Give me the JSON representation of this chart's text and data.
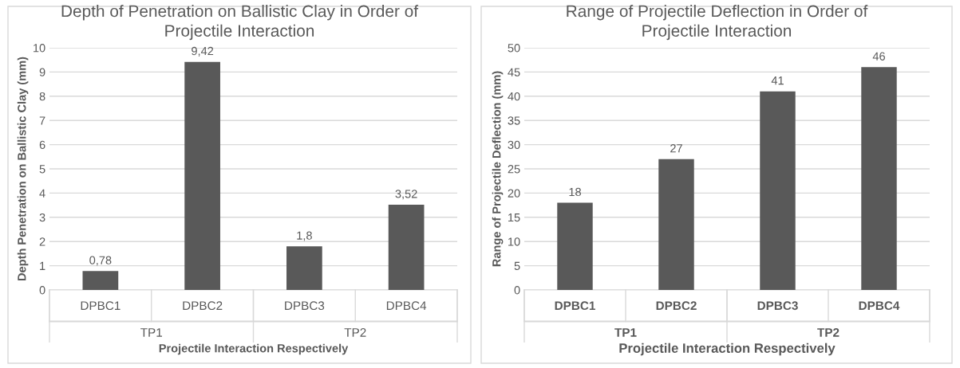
{
  "chart_data": [
    {
      "type": "bar",
      "title": "Depth of Penetration on Ballistic Clay in Order of Projectile Interaction",
      "xlabel": "Projectile Interaction Respectively",
      "ylabel": "Depth Penetration on Ballistic Clay (mm)",
      "categories": [
        "DPBC1",
        "DPBC2",
        "DPBC3",
        "DPBC4"
      ],
      "values": [
        0.78,
        9.42,
        1.8,
        3.52
      ],
      "value_labels": [
        "0,78",
        "9,42",
        "1,8",
        "3,52"
      ],
      "color": "#595959",
      "annotations": [
        "TP1",
        "TP2"
      ],
      "ylim": [
        0,
        10
      ],
      "yticks": [
        0,
        1,
        2,
        3,
        4,
        5,
        6,
        7,
        8,
        9,
        10
      ],
      "grid": "y",
      "legend": false
    },
    {
      "type": "bar",
      "title": "Range of Projectile Deflection in Order of Projectile Interaction",
      "xlabel": "Projectile Interaction Respectively",
      "ylabel": "Range of Projectile Deflection (mm)",
      "categories": [
        "DPBC1",
        "DPBC2",
        "DPBC3",
        "DPBC4"
      ],
      "values": [
        18,
        27,
        41,
        46
      ],
      "value_labels": [
        "18",
        "27",
        "41",
        "46"
      ],
      "color": "#595959",
      "annotations": [
        "TP1",
        "TP2"
      ],
      "ylim": [
        0,
        50
      ],
      "yticks": [
        0,
        5,
        10,
        15,
        20,
        25,
        30,
        35,
        40,
        45,
        50
      ],
      "grid": "y",
      "legend": false
    }
  ]
}
